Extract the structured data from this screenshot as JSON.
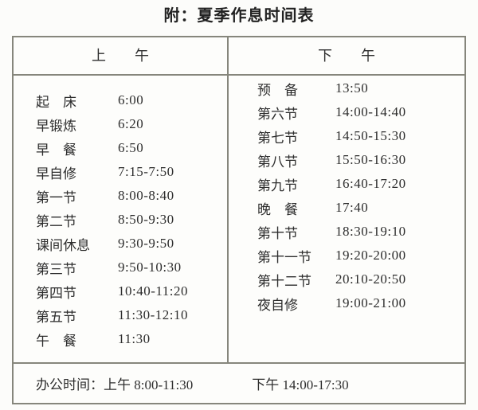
{
  "title": "附：夏季作息时间表",
  "table": {
    "morning": {
      "header": "上　　午",
      "rows": [
        {
          "label": "起　床",
          "time": "6:00"
        },
        {
          "label": "早锻炼",
          "time": "6:20"
        },
        {
          "label": "早　餐",
          "time": "6:50"
        },
        {
          "label": "早自修",
          "time": "7:15-7:50"
        },
        {
          "label": "第一节",
          "time": "8:00-8:40"
        },
        {
          "label": "第二节",
          "time": "8:50-9:30"
        },
        {
          "label": "课间休息",
          "time": "9:30-9:50"
        },
        {
          "label": "第三节",
          "time": "9:50-10:30"
        },
        {
          "label": "第四节",
          "time": "10:40-11:20"
        },
        {
          "label": "第五节",
          "time": "11:30-12:10"
        },
        {
          "label": "午　餐",
          "time": "11:30"
        }
      ]
    },
    "afternoon": {
      "header": "下　　午",
      "rows": [
        {
          "label": "预　备",
          "time": "13:50"
        },
        {
          "label": "第六节",
          "time": "14:00-14:40"
        },
        {
          "label": "第七节",
          "time": "14:50-15:30"
        },
        {
          "label": "第八节",
          "time": "15:50-16:30"
        },
        {
          "label": "第九节",
          "time": "16:40-17:20"
        },
        {
          "label": "晚　餐",
          "time": "17:40"
        },
        {
          "label": "第十节",
          "time": "18:30-19:10"
        },
        {
          "label": "第十一节",
          "time": "19:20-20:00"
        },
        {
          "label": "第十二节",
          "time": "20:10-20:50"
        },
        {
          "label": "夜自修",
          "time": "19:00-21:00"
        }
      ]
    },
    "footer": {
      "label": "办公时间：",
      "morning_hours": "上午 8:00-11:30",
      "afternoon_hours": "下午 14:00-17:30"
    }
  },
  "colors": {
    "background": "#fcfcfa",
    "border": "#86867c",
    "text": "#2d2d2d",
    "title_text": "#222222"
  }
}
